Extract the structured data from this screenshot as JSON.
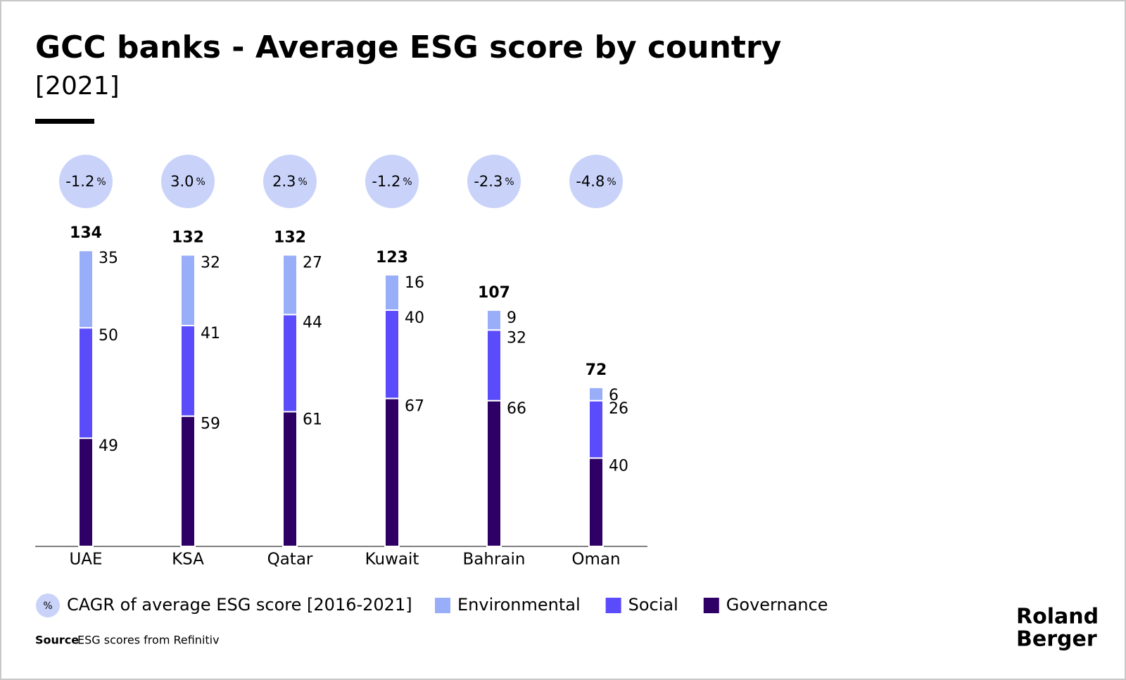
{
  "chart_data": {
    "type": "stacked_bar",
    "title": "GCC banks - Average ESG score by country",
    "subtitle": "[2021]",
    "categories": [
      "UAE",
      "KSA",
      "Qatar",
      "Kuwait",
      "Bahrain",
      "Oman"
    ],
    "series": [
      {
        "name": "Governance",
        "color": "#2e0066",
        "values": [
          49,
          59,
          61,
          67,
          66,
          40
        ]
      },
      {
        "name": "Social",
        "color": "#5b4cfb",
        "values": [
          50,
          41,
          44,
          40,
          32,
          26
        ]
      },
      {
        "name": "Environmental",
        "color": "#99aef9",
        "values": [
          35,
          32,
          27,
          16,
          9,
          6
        ]
      }
    ],
    "totals": [
      134,
      132,
      132,
      123,
      107,
      72
    ],
    "cagr": {
      "name": "CAGR of average ESG score [2016-2021]",
      "unit": "%",
      "color": "#c9d3fa",
      "values": [
        -1.2,
        3.0,
        2.3,
        -1.2,
        -2.3,
        -4.8
      ],
      "value_labels": [
        "-1.2",
        "3.0",
        "2.3",
        "-1.2",
        "-2.3",
        "-4.8"
      ]
    },
    "source_label": "Source",
    "source": "ESG scores from Refinitiv",
    "logo": [
      "Roland",
      "Berger"
    ]
  }
}
